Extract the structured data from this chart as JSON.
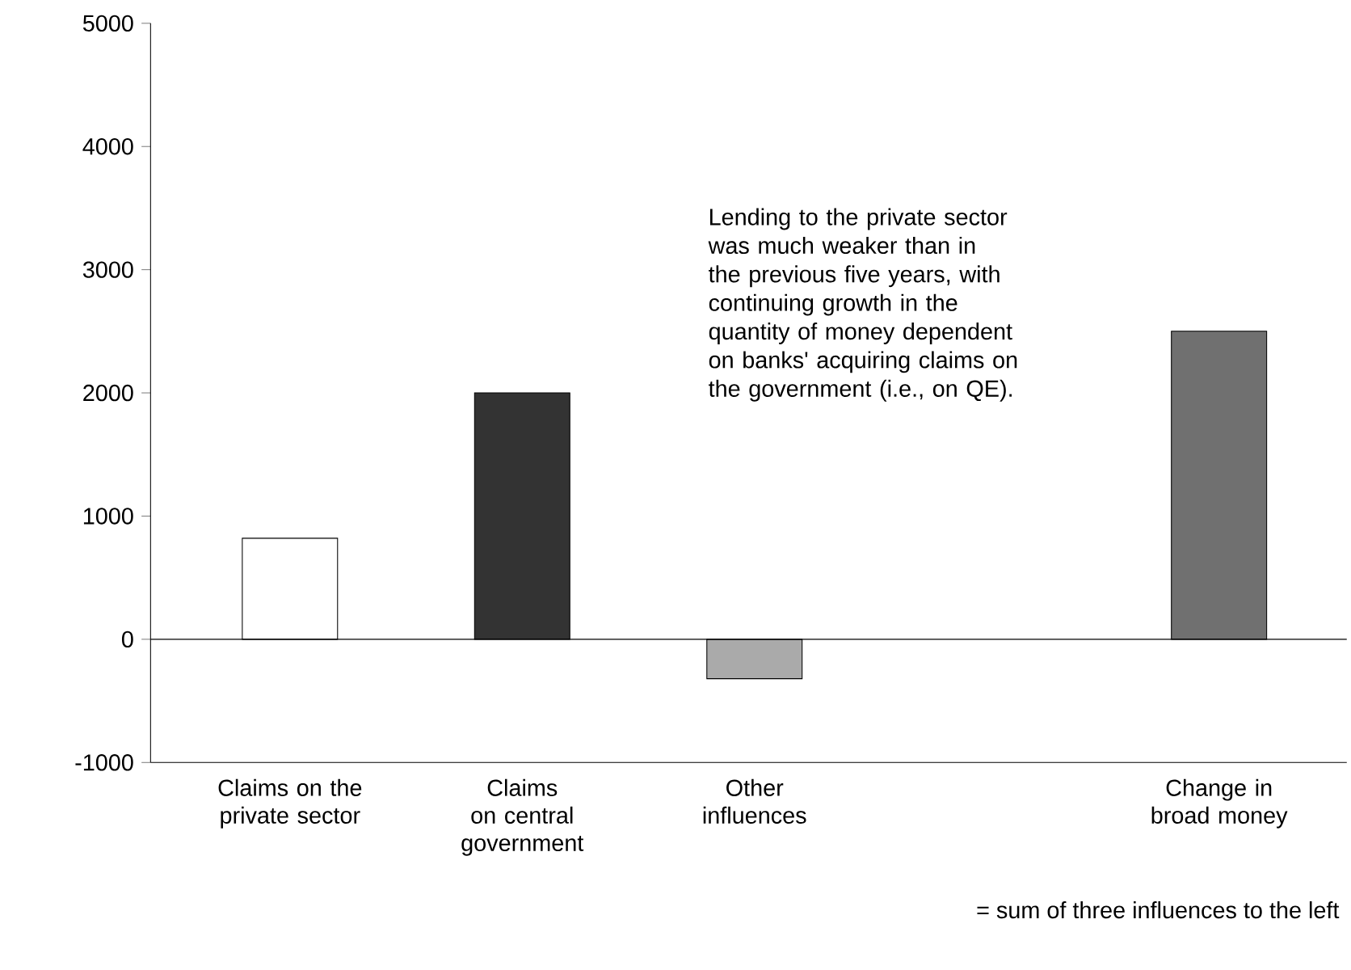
{
  "chart_data": {
    "type": "bar",
    "categories": [
      "Claims on the private sector",
      "Claims on central government",
      "Other influences",
      null,
      "Change in broad money"
    ],
    "values": [
      820,
      2000,
      -320,
      null,
      2500
    ],
    "colors": [
      "#ffffff",
      "#333333",
      "#aaaaaa",
      null,
      "#707070"
    ],
    "ylim": [
      -1000,
      5000
    ],
    "yticks": [
      -1000,
      0,
      1000,
      2000,
      3000,
      4000,
      5000
    ],
    "ref_lines": [
      {
        "axis": "y",
        "value": 0,
        "color": "#000000"
      }
    ],
    "annotations": [
      "Lending to the private sector was much weaker than in the previous five years, with continuing growth in the quantity of money dependent on banks' acquiring claims on the government (i.e., on QE).",
      "= sum of three influences to the left"
    ]
  }
}
